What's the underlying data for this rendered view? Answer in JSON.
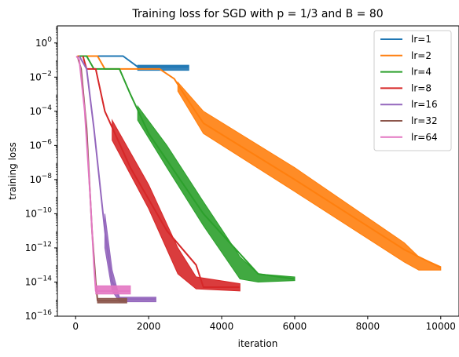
{
  "chart_data": {
    "type": "line",
    "title": "Training loss for SGD with p = 1/3 and B = 80",
    "xlabel": "iteration",
    "ylabel": "training loss",
    "xlim": [
      -500,
      10500
    ],
    "ylim": [
      1e-16,
      10
    ],
    "yscale": "log",
    "grid": false,
    "legend_position": "top-right",
    "x_ticks": [
      0,
      2000,
      4000,
      6000,
      8000,
      10000
    ],
    "x_tick_labels": [
      "0",
      "2000",
      "4000",
      "6000",
      "8000",
      "10000"
    ],
    "y_ticks_exp": [
      0,
      -2,
      -4,
      -6,
      -8,
      -10,
      -12,
      -14,
      -16
    ],
    "series": [
      {
        "name": "lr=1",
        "color": "#1f77b4",
        "curve": [
          [
            50,
            0.17
          ],
          [
            1300,
            0.17
          ],
          [
            1700,
            0.04
          ],
          [
            3100,
            0.04
          ]
        ],
        "band": [
          [
            1700,
            0.05,
            0.025
          ],
          [
            3100,
            0.05,
            0.025
          ]
        ]
      },
      {
        "name": "lr=2",
        "color": "#ff7f0e",
        "curve": [
          [
            50,
            0.17
          ],
          [
            600,
            0.17
          ],
          [
            800,
            0.03
          ],
          [
            2300,
            0.03
          ],
          [
            2700,
            0.008
          ],
          [
            3000,
            0.0008
          ],
          [
            3500,
            2e-05
          ],
          [
            6000,
            1e-08
          ],
          [
            9000,
            8e-13
          ],
          [
            10000,
            7e-14
          ]
        ],
        "band": [
          [
            2800,
            0.005,
            0.0015
          ],
          [
            3500,
            0.0001,
            5e-06
          ],
          [
            6000,
            5e-08,
            2e-09
          ],
          [
            9000,
            2e-12,
            1.5e-13
          ],
          [
            9400,
            3e-13,
            5e-14
          ],
          [
            10000,
            8e-14,
            5e-14
          ]
        ]
      },
      {
        "name": "lr=4",
        "color": "#2ca02c",
        "curve": [
          [
            100,
            0.17
          ],
          [
            300,
            0.17
          ],
          [
            500,
            0.03
          ],
          [
            1200,
            0.03
          ],
          [
            1500,
            0.001
          ],
          [
            2000,
            5e-06
          ],
          [
            3500,
            1e-10
          ],
          [
            5000,
            3e-14
          ],
          [
            6000,
            1.5e-14
          ]
        ],
        "band": [
          [
            1700,
            0.0002,
            3e-05
          ],
          [
            2500,
            1e-06,
            5e-08
          ],
          [
            3500,
            5e-10,
            2e-11
          ],
          [
            4500,
            3e-13,
            1.5e-14
          ],
          [
            5000,
            3e-14,
            1e-14
          ],
          [
            6000,
            2e-14,
            1.2e-14
          ]
        ]
      },
      {
        "name": "lr=8",
        "color": "#d62728",
        "curve": [
          [
            200,
            0.17
          ],
          [
            300,
            0.03
          ],
          [
            550,
            0.03
          ],
          [
            800,
            0.0001
          ],
          [
            1500,
            5e-08
          ],
          [
            2500,
            1e-11
          ],
          [
            3300,
            1e-13
          ],
          [
            3500,
            5e-15
          ],
          [
            4500,
            5e-15
          ]
        ],
        "band": [
          [
            1000,
            3e-05,
            2e-06
          ],
          [
            2000,
            5e-09,
            2e-10
          ],
          [
            2800,
            1e-12,
            3e-14
          ],
          [
            3300,
            2e-14,
            4e-15
          ],
          [
            4500,
            8e-15,
            3e-15
          ]
        ]
      },
      {
        "name": "lr=16",
        "color": "#9467bd",
        "curve": [
          [
            100,
            0.17
          ],
          [
            300,
            0.03
          ],
          [
            500,
            1e-05
          ],
          [
            800,
            1e-11
          ],
          [
            1000,
            1e-14
          ],
          [
            1100,
            5e-15
          ],
          [
            1200,
            1e-15
          ],
          [
            2200,
            1e-15
          ]
        ],
        "band": [
          [
            800,
            1e-10,
            1e-12
          ],
          [
            1000,
            5e-14,
            3e-15
          ],
          [
            1200,
            1.3e-15,
            7e-16
          ],
          [
            2200,
            1.3e-15,
            7e-16
          ]
        ]
      },
      {
        "name": "lr=32",
        "color": "#8c564b",
        "curve": [
          [
            50,
            0.17
          ],
          [
            150,
            0.03
          ],
          [
            300,
            1e-05
          ],
          [
            450,
            1e-11
          ],
          [
            550,
            1e-14
          ],
          [
            600,
            8e-16
          ],
          [
            1400,
            8e-16
          ]
        ],
        "band": [
          [
            600,
            1.1e-15,
            6e-16
          ],
          [
            1400,
            1.1e-15,
            6e-16
          ]
        ]
      },
      {
        "name": "lr=64",
        "color": "#e377c2",
        "curve": [
          [
            20,
            0.17
          ],
          [
            100,
            0.1
          ],
          [
            250,
            0.0001
          ],
          [
            400,
            1e-09
          ],
          [
            500,
            1e-13
          ],
          [
            550,
            3e-15
          ],
          [
            1500,
            3e-15
          ]
        ],
        "band": [
          [
            550,
            6e-15,
            2e-15
          ],
          [
            1500,
            6e-15,
            2e-15
          ]
        ]
      }
    ]
  }
}
